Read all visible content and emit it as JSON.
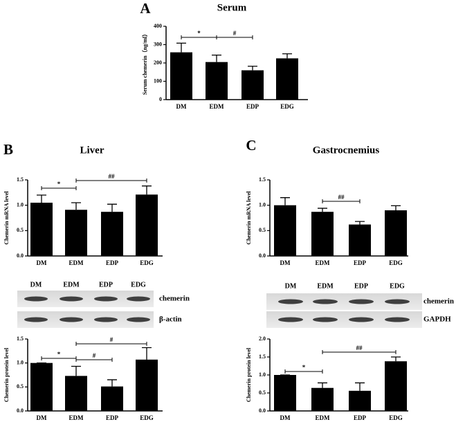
{
  "chart_data": [
    {
      "type": "bar",
      "panel_label": "A",
      "title": "Serum",
      "ylabel": "Serum chemerin（ng/ml）",
      "color": "#000000",
      "categories": [
        "DM",
        "EDM",
        "EDP",
        "EDG"
      ],
      "values": [
        258,
        205,
        160,
        225
      ],
      "errors": [
        50,
        38,
        22,
        25
      ],
      "ylim": [
        0,
        400
      ],
      "yticks": [
        0,
        100,
        200,
        300,
        400
      ],
      "annotations": [
        {
          "text": "*",
          "between": [
            "DM",
            "EDM"
          ]
        },
        {
          "text": "#",
          "between": [
            "EDM",
            "EDP"
          ]
        }
      ]
    },
    {
      "type": "bar",
      "panel_label": "B",
      "title": "Liver",
      "ylabel": "Chemerin mRNA level",
      "color": "#000000",
      "categories": [
        "DM",
        "EDM",
        "EDP",
        "EDG"
      ],
      "values": [
        1.05,
        0.91,
        0.87,
        1.21
      ],
      "errors": [
        0.15,
        0.14,
        0.15,
        0.17
      ],
      "ylim": [
        0,
        1.5
      ],
      "yticks": [
        {
          "value": 0,
          "label": "0.0"
        },
        0.5,
        {
          "value": 1,
          "label": "1.0"
        },
        1.5
      ],
      "annotations": [
        {
          "text": "*",
          "between": [
            "DM",
            "EDM"
          ]
        },
        {
          "text": "##",
          "between": [
            "EDM",
            "EDG"
          ]
        }
      ]
    },
    {
      "type": "bar",
      "ylabel": "Chemerin protein level",
      "color": "#000000",
      "categories": [
        "DM",
        "EDM",
        "EDP",
        "EDG"
      ],
      "values": [
        1.0,
        0.73,
        0.51,
        1.07
      ],
      "errors": [
        0,
        0.2,
        0.14,
        0.25
      ],
      "ylim": [
        0,
        1.5
      ],
      "yticks": [
        {
          "value": 0,
          "label": "0.0"
        },
        0.5,
        {
          "value": 1,
          "label": "1.0"
        },
        1.5
      ],
      "annotations": [
        {
          "text": "*",
          "between": [
            "DM",
            "EDM"
          ]
        },
        {
          "text": "#",
          "between": [
            "EDM",
            "EDP"
          ]
        },
        {
          "text": "#",
          "between": [
            "EDM",
            "EDG"
          ]
        }
      ]
    },
    {
      "type": "bar",
      "panel_label": "C",
      "title": "Gastrocnemius",
      "ylabel": "Chemerin mRNA level",
      "color": "#000000",
      "categories": [
        "DM",
        "EDM",
        "EDP",
        "EDG"
      ],
      "values": [
        1.0,
        0.87,
        0.62,
        0.9
      ],
      "errors": [
        0.15,
        0.07,
        0.06,
        0.09
      ],
      "ylim": [
        0,
        1.5
      ],
      "yticks": [
        {
          "value": 0,
          "label": "0.0"
        },
        0.5,
        {
          "value": 1,
          "label": "1.0"
        },
        1.5
      ],
      "annotations": [
        {
          "text": "##",
          "between": [
            "EDM",
            "EDP"
          ]
        }
      ]
    },
    {
      "type": "bar",
      "ylabel": "Chemerin protein level",
      "color": "#000000",
      "categories": [
        "DM",
        "EDM",
        "EDP",
        "EDG"
      ],
      "values": [
        1.0,
        0.64,
        0.56,
        1.38
      ],
      "errors": [
        0,
        0.14,
        0.22,
        0.12
      ],
      "ylim": [
        0,
        2
      ],
      "yticks": [
        {
          "value": 0,
          "label": "0.0"
        },
        0.5,
        {
          "value": 1,
          "label": "1.0"
        },
        1.5,
        {
          "value": 2,
          "label": "2.0"
        }
      ],
      "annotations": [
        {
          "text": "*",
          "between": [
            "DM",
            "EDM"
          ]
        },
        {
          "text": "##",
          "between": [
            "EDM",
            "EDG"
          ]
        }
      ]
    }
  ],
  "blots": [
    {
      "columns": [
        "DM",
        "EDM",
        "EDP",
        "EDG"
      ],
      "rows": [
        "chemerin",
        "β-actin"
      ]
    },
    {
      "columns": [
        "DM",
        "EDM",
        "EDP",
        "EDG"
      ],
      "rows": [
        "chemerin",
        "GAPDH"
      ]
    }
  ]
}
